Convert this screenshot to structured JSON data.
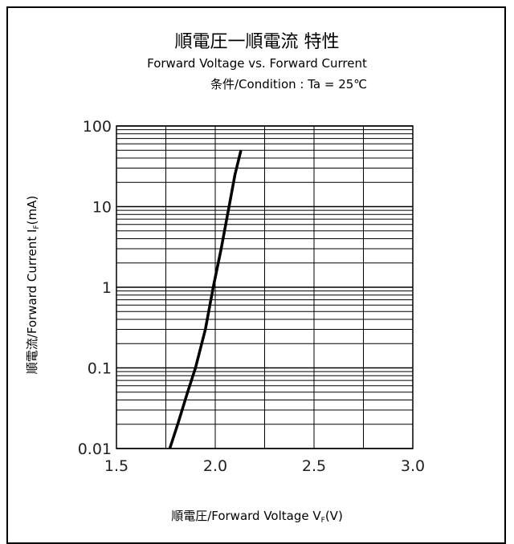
{
  "title": "順電圧一順電流 特性",
  "subtitle": "Forward Voltage vs. Forward Current",
  "condition": "条件/Condition : Ta = 25℃",
  "chart_data": {
    "type": "line",
    "xlabel": "順電圧/Forward Voltage  V",
    "xlabel_sub": "F",
    "xlabel_unit": "(V)",
    "ylabel": "順電流/Forward Current  I",
    "ylabel_sub": "F",
    "ylabel_unit": "(mA)",
    "xlim": [
      1.5,
      3.0
    ],
    "ylim": [
      0.01,
      100
    ],
    "y_scale": "log",
    "grid": true,
    "x_ticks": [
      1.5,
      2.0,
      2.5,
      3.0
    ],
    "x_tick_labels": [
      "1.5",
      "2.0",
      "2.5",
      "3.0"
    ],
    "y_ticks": [
      0.01,
      0.1,
      1,
      10,
      100
    ],
    "y_tick_labels": [
      "0.01",
      "0.1",
      "1",
      "10",
      "100"
    ],
    "series": [
      {
        "x": [
          1.77,
          1.81,
          1.86,
          1.9,
          1.95,
          1.99,
          2.03,
          2.07,
          2.1,
          2.13
        ],
        "y": [
          0.01,
          0.02,
          0.05,
          0.1,
          0.3,
          1,
          3,
          10,
          25,
          50
        ]
      }
    ]
  }
}
